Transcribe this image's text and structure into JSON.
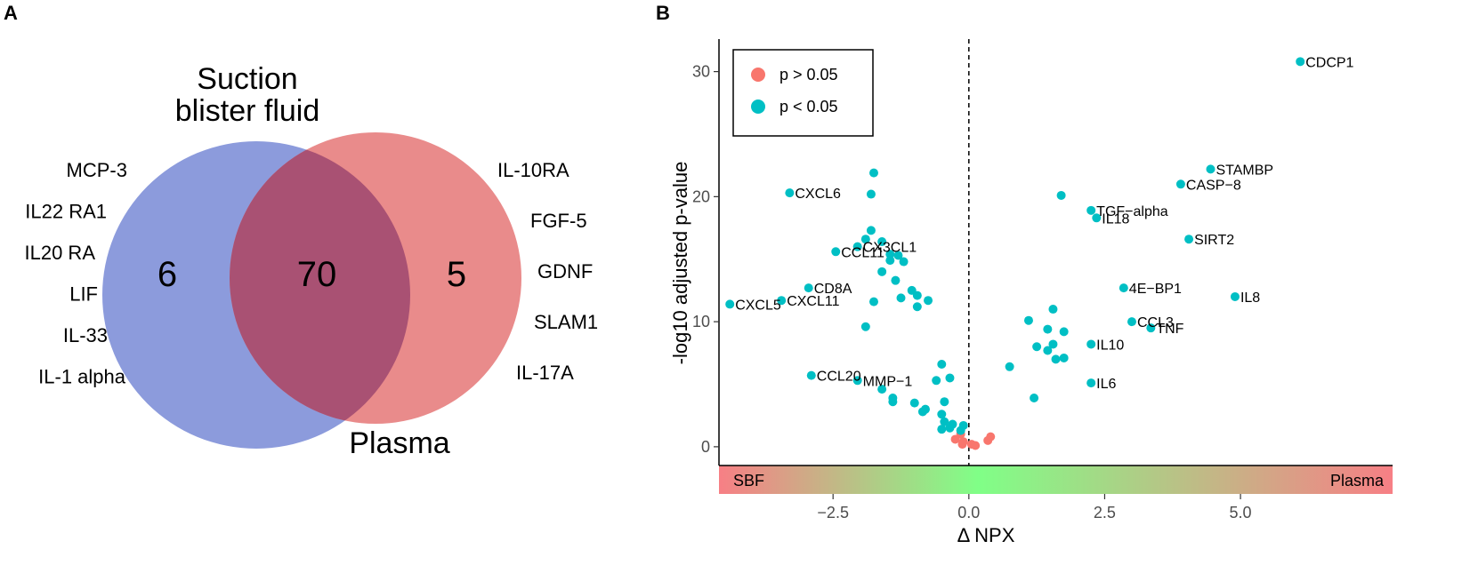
{
  "panels": {
    "a": "A",
    "b": "B"
  },
  "colors": {
    "blister": "#8c9bdc",
    "plasma": "#e98b8b",
    "overlap": "#a95173",
    "not_sig": "#f8766d",
    "sig": "#00bfc4"
  },
  "venn": {
    "set_left_title": [
      "Suction",
      "blister fluid"
    ],
    "set_right_title": "Plasma",
    "count_left_only": "6",
    "count_both": "70",
    "count_right_only": "5",
    "left_only_items": [
      "MCP-3",
      "IL22 RA1",
      "IL20 RA",
      "LIF",
      "IL-33",
      "IL-1 alpha"
    ],
    "right_only_items": [
      "IL-10RA",
      "FGF-5",
      "GDNF",
      "SLAM1",
      "IL-17A"
    ]
  },
  "chart_data": {
    "type": "scatter",
    "title": "",
    "xlabel": "Δ NPX",
    "ylabel": "-log10 adjusted  p-value",
    "xlim": [
      -4.6,
      7.8
    ],
    "ylim": [
      -1.5,
      32.6
    ],
    "x_ticks": [
      -2.5,
      0.0,
      2.5,
      5.0
    ],
    "x_tick_labels": [
      "−2.5",
      "0.0",
      "2.5",
      "5.0"
    ],
    "y_ticks": [
      0,
      10,
      20,
      30
    ],
    "y_tick_labels": [
      "0",
      "10",
      "20",
      "30"
    ],
    "vline_x": 0,
    "legend": {
      "position": "top-left",
      "entries": [
        {
          "key": "not_sig",
          "label": "p > 0.05"
        },
        {
          "key": "sig",
          "label": "p < 0.05"
        }
      ]
    },
    "gradient_band": {
      "left_label": "SBF",
      "right_label": "Plasma"
    },
    "series": [
      {
        "name": "p > 0.05",
        "key": "not_sig",
        "points": [
          {
            "x": -0.25,
            "y": 0.6
          },
          {
            "x": -0.15,
            "y": 1.0
          },
          {
            "x": -0.1,
            "y": 0.4
          },
          {
            "x": -0.12,
            "y": 0.2
          },
          {
            "x": 0.05,
            "y": 0.2
          },
          {
            "x": 0.12,
            "y": 0.1
          },
          {
            "x": 0.35,
            "y": 0.5
          },
          {
            "x": 0.4,
            "y": 0.8
          }
        ]
      },
      {
        "name": "p < 0.05",
        "key": "sig",
        "points": [
          {
            "x": 6.1,
            "y": 30.8,
            "label": "CDCP1"
          },
          {
            "x": 4.45,
            "y": 22.2,
            "label": "STAMBP"
          },
          {
            "x": 3.9,
            "y": 21.0,
            "label": "CASP−8"
          },
          {
            "x": -3.3,
            "y": 20.3,
            "label": "CXCL6"
          },
          {
            "x": 2.25,
            "y": 18.9,
            "label": "TGF−alpha"
          },
          {
            "x": 2.35,
            "y": 18.3,
            "label": "IL18"
          },
          {
            "x": 4.05,
            "y": 16.6,
            "label": "SIRT2"
          },
          {
            "x": -2.05,
            "y": 16.0,
            "label": "CX3CL1"
          },
          {
            "x": -2.45,
            "y": 15.6,
            "label": "CCL11"
          },
          {
            "x": 2.85,
            "y": 12.7,
            "label": "4E−BP1"
          },
          {
            "x": -2.95,
            "y": 12.7,
            "label": "CD8A"
          },
          {
            "x": 4.9,
            "y": 12.0,
            "label": "IL8"
          },
          {
            "x": -4.4,
            "y": 11.4,
            "label": "CXCL5"
          },
          {
            "x": -3.45,
            "y": 11.7,
            "label": "CXCL11"
          },
          {
            "x": 3.0,
            "y": 10.0,
            "label": "CCL3"
          },
          {
            "x": 3.35,
            "y": 9.5,
            "label": "TNF"
          },
          {
            "x": 2.25,
            "y": 8.2,
            "label": "IL10"
          },
          {
            "x": -2.9,
            "y": 5.7,
            "label": "CCL20"
          },
          {
            "x": -2.05,
            "y": 5.3,
            "label": "MMP−1"
          },
          {
            "x": 2.25,
            "y": 5.1,
            "label": "IL6"
          },
          {
            "x": -1.75,
            "y": 21.9
          },
          {
            "x": -1.8,
            "y": 20.2
          },
          {
            "x": -1.8,
            "y": 17.3
          },
          {
            "x": -1.6,
            "y": 16.4
          },
          {
            "x": -1.9,
            "y": 16.6
          },
          {
            "x": -1.45,
            "y": 15.4
          },
          {
            "x": -1.3,
            "y": 15.3
          },
          {
            "x": -1.2,
            "y": 14.8
          },
          {
            "x": -1.45,
            "y": 14.9
          },
          {
            "x": -1.6,
            "y": 14.0
          },
          {
            "x": -1.35,
            "y": 13.3
          },
          {
            "x": -1.05,
            "y": 12.5
          },
          {
            "x": -0.95,
            "y": 12.1
          },
          {
            "x": -1.25,
            "y": 11.9
          },
          {
            "x": -0.75,
            "y": 11.7
          },
          {
            "x": -1.75,
            "y": 11.6
          },
          {
            "x": -0.95,
            "y": 11.2
          },
          {
            "x": -1.9,
            "y": 9.6
          },
          {
            "x": -0.5,
            "y": 6.6
          },
          {
            "x": -0.35,
            "y": 5.5
          },
          {
            "x": -0.6,
            "y": 5.3
          },
          {
            "x": -1.6,
            "y": 4.6
          },
          {
            "x": -1.4,
            "y": 3.9
          },
          {
            "x": -1.4,
            "y": 3.6
          },
          {
            "x": -1.0,
            "y": 3.5
          },
          {
            "x": -0.8,
            "y": 3.0
          },
          {
            "x": -0.85,
            "y": 2.8
          },
          {
            "x": -0.45,
            "y": 3.6
          },
          {
            "x": -0.5,
            "y": 2.6
          },
          {
            "x": -0.45,
            "y": 2.0
          },
          {
            "x": -0.3,
            "y": 1.8
          },
          {
            "x": -0.5,
            "y": 1.4
          },
          {
            "x": -0.35,
            "y": 1.5
          },
          {
            "x": -0.1,
            "y": 1.7
          },
          {
            "x": -0.15,
            "y": 1.3
          },
          {
            "x": 1.7,
            "y": 20.1
          },
          {
            "x": 1.1,
            "y": 10.1
          },
          {
            "x": 1.55,
            "y": 11.0
          },
          {
            "x": 1.45,
            "y": 9.4
          },
          {
            "x": 1.75,
            "y": 9.2
          },
          {
            "x": 1.25,
            "y": 8.0
          },
          {
            "x": 1.55,
            "y": 8.2
          },
          {
            "x": 1.45,
            "y": 7.7
          },
          {
            "x": 1.6,
            "y": 7.0
          },
          {
            "x": 1.75,
            "y": 7.1
          },
          {
            "x": 0.75,
            "y": 6.4
          },
          {
            "x": 1.2,
            "y": 3.9
          }
        ]
      }
    ]
  }
}
